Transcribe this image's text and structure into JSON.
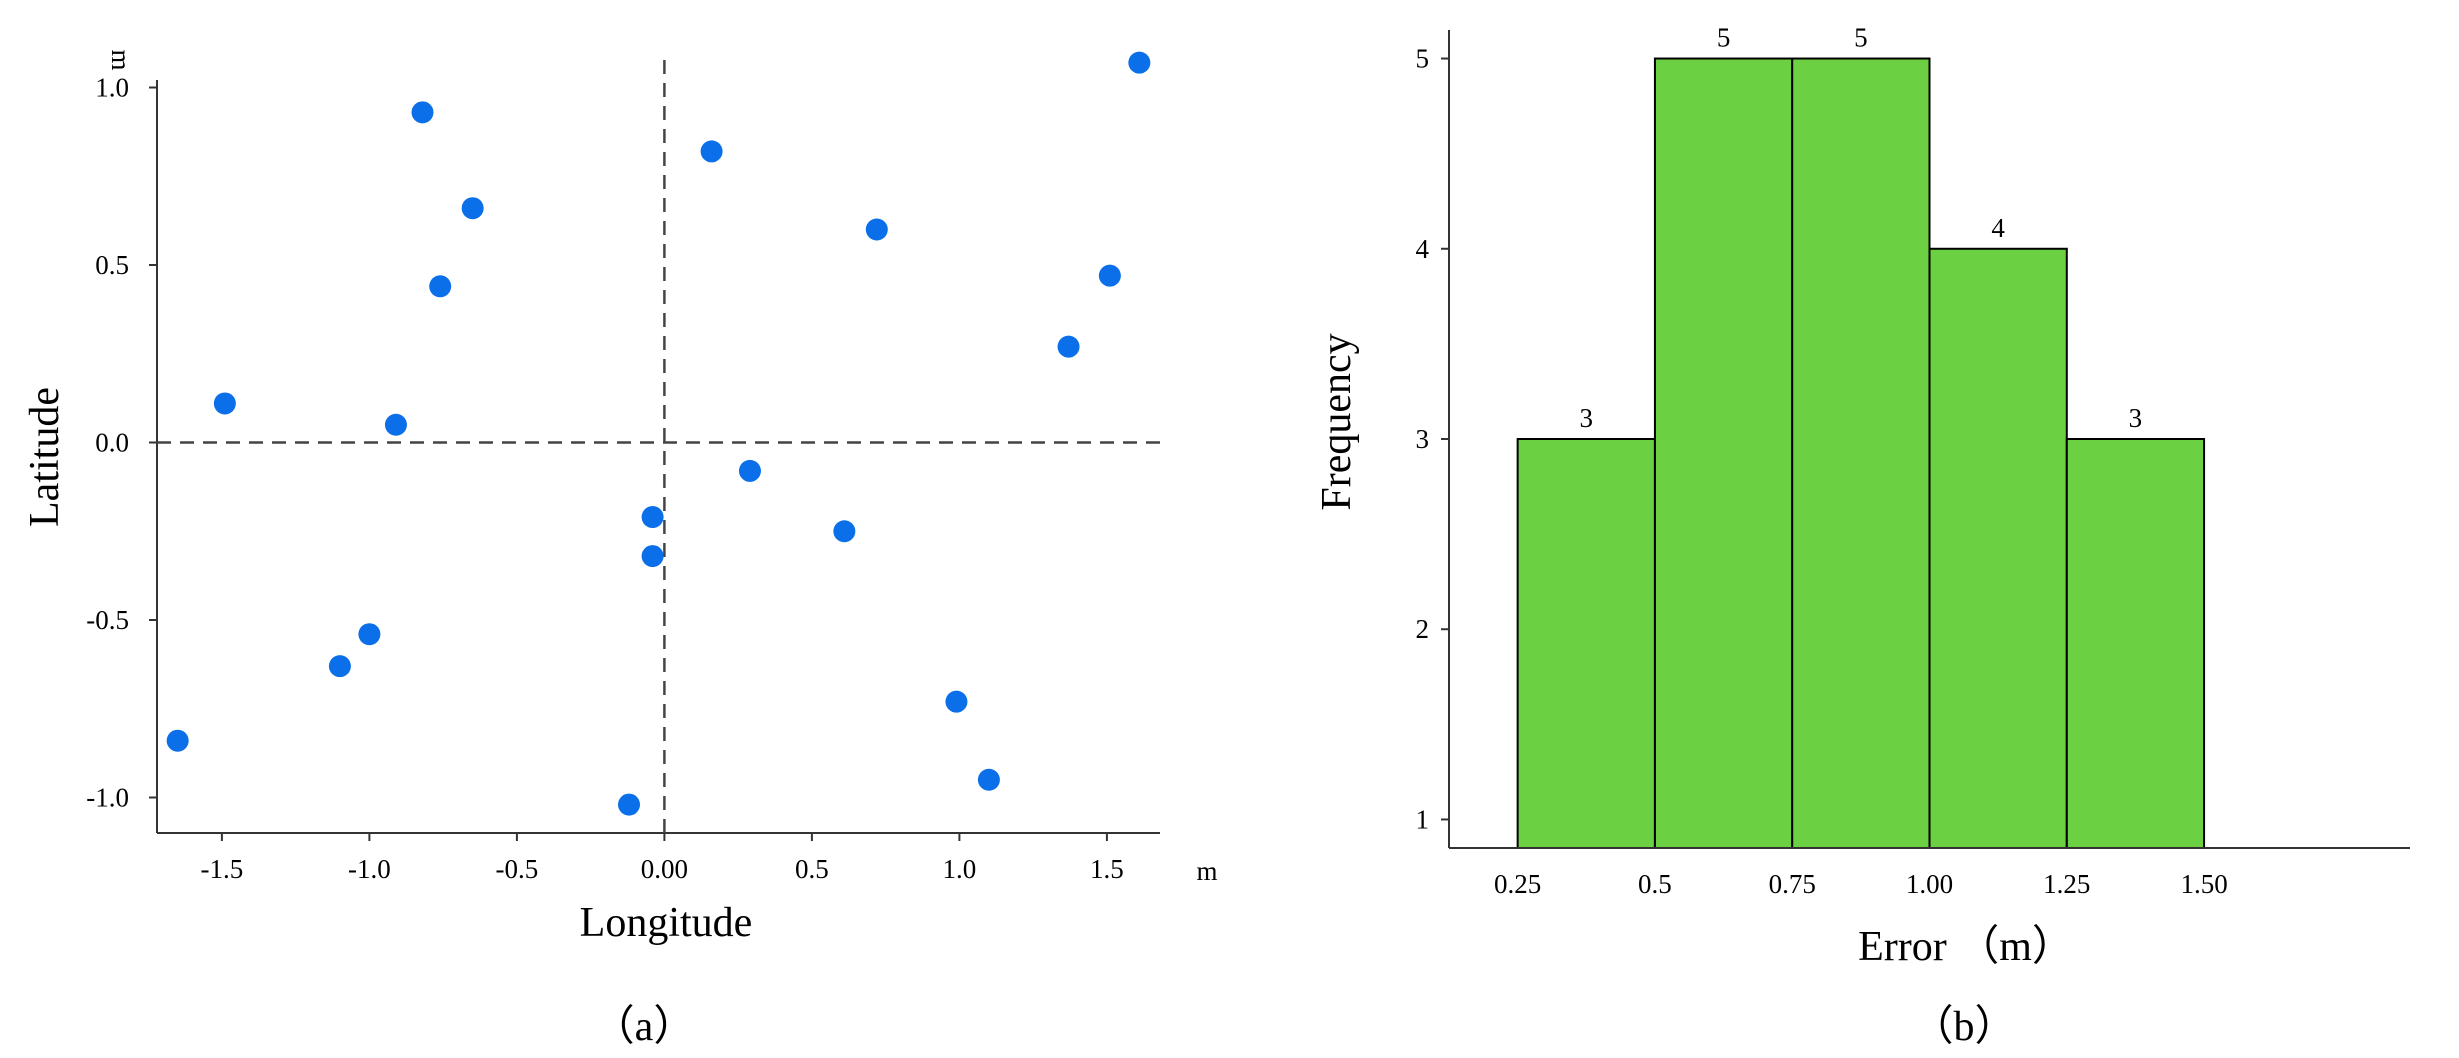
{
  "chart_data": [
    {
      "type": "scatter",
      "panel_label": "（a）",
      "xlabel": "Longitude",
      "ylabel": "Latitude",
      "x_unit": "m",
      "y_unit": "m",
      "xlim": [
        -1.72,
        1.68
      ],
      "ylim": [
        -1.1,
        1.1
      ],
      "x_ticks": [
        -1.5,
        -1.0,
        -0.5,
        0.0,
        0.5,
        1.0,
        1.5
      ],
      "x_tick_labels": [
        "-1.5",
        "-1.0",
        "-0.5",
        "0.00",
        "0.5",
        "1.0",
        "1.5"
      ],
      "y_ticks": [
        1.0,
        0.5,
        0.0,
        -0.5,
        -1.0
      ],
      "y_tick_labels": [
        "1.0",
        "0.5",
        "0.0",
        "-0.5",
        "-1.0"
      ],
      "reference_lines": {
        "x": 0.0,
        "y": 0.0,
        "style": "dashed"
      },
      "grid": false,
      "point_color": "#0A6FE8",
      "points": [
        {
          "x": -0.82,
          "y": 0.93
        },
        {
          "x": -0.65,
          "y": 0.66
        },
        {
          "x": -0.76,
          "y": 0.44
        },
        {
          "x": -1.49,
          "y": 0.11
        },
        {
          "x": -0.91,
          "y": 0.05
        },
        {
          "x": -1.0,
          "y": -0.54
        },
        {
          "x": -1.1,
          "y": -0.63
        },
        {
          "x": -1.65,
          "y": -0.84
        },
        {
          "x": 0.16,
          "y": 0.82
        },
        {
          "x": 0.72,
          "y": 0.6
        },
        {
          "x": 1.61,
          "y": 1.07
        },
        {
          "x": 1.51,
          "y": 0.47
        },
        {
          "x": 1.37,
          "y": 0.27
        },
        {
          "x": 0.29,
          "y": -0.08
        },
        {
          "x": -0.04,
          "y": -0.21
        },
        {
          "x": -0.04,
          "y": -0.32
        },
        {
          "x": 0.61,
          "y": -0.25
        },
        {
          "x": 0.99,
          "y": -0.73
        },
        {
          "x": 1.1,
          "y": -0.95
        },
        {
          "x": -0.12,
          "y": -1.02
        }
      ]
    },
    {
      "type": "bar",
      "subtype": "histogram",
      "panel_label": "（b）",
      "xlabel": "Error （m）",
      "ylabel": "Frequency",
      "bin_edges": [
        0.25,
        0.5,
        0.75,
        1.0,
        1.25,
        1.5
      ],
      "x_tick_labels": [
        "0.25",
        "0.5",
        "0.75",
        "1.00",
        "1.25",
        "1.50"
      ],
      "xlim": [
        0.125,
        1.875
      ],
      "categories": [
        "0.25–0.5",
        "0.5–0.75",
        "0.75–1.00",
        "1.00–1.25",
        "1.25–1.50"
      ],
      "values": [
        3,
        5,
        5,
        4,
        3
      ],
      "data_labels": [
        "3",
        "5",
        "5",
        "4",
        "3"
      ],
      "ylim": [
        0.85,
        5.15
      ],
      "y_ticks": [
        1,
        2,
        3,
        4,
        5
      ],
      "y_tick_labels": [
        "1",
        "2",
        "3",
        "4",
        "5"
      ],
      "grid": false,
      "bar_color": "#6CD142",
      "bar_edge_color": "#000000"
    }
  ]
}
